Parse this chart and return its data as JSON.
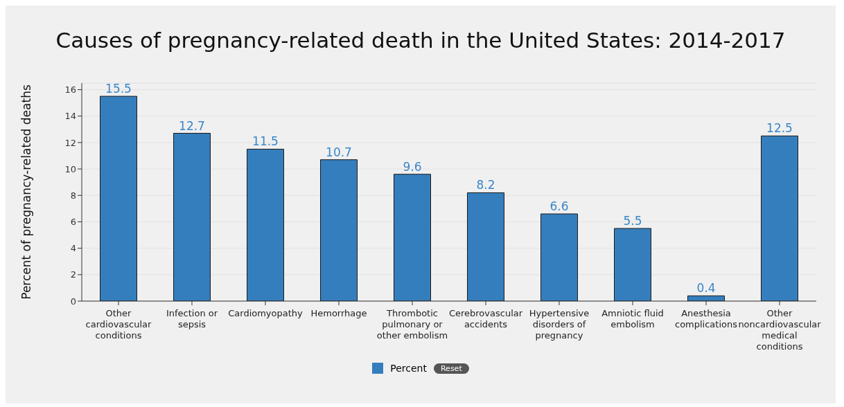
{
  "chart_data": {
    "type": "bar",
    "title": "Causes of pregnancy-related death in the United States: 2014-2017",
    "ylabel": "Percent of pregnancy-related deaths",
    "categories": [
      "Other cardiovascular conditions",
      "Infection or sepsis",
      "Cardiomyopathy",
      "Hemorrhage",
      "Thrombotic pulmonary or other embolism",
      "Cerebrovascular accidents",
      "Hypertensive disorders of pregnancy",
      "Amniotic fluid embolism",
      "Anesthesia complications",
      "Other noncardiovascular medical conditions"
    ],
    "series": [
      {
        "name": "Percent",
        "color": "#357ebd",
        "values": [
          15.5,
          12.7,
          11.5,
          10.7,
          9.6,
          8.2,
          6.6,
          5.5,
          0.4,
          12.5
        ]
      }
    ],
    "ylim": [
      0,
      16.5
    ],
    "yticks": [
      0,
      2,
      4,
      6,
      8,
      10,
      12,
      14,
      16
    ],
    "grid": "y",
    "data_labels": true,
    "legend": "bottom",
    "annotations": [
      "Reset"
    ]
  }
}
